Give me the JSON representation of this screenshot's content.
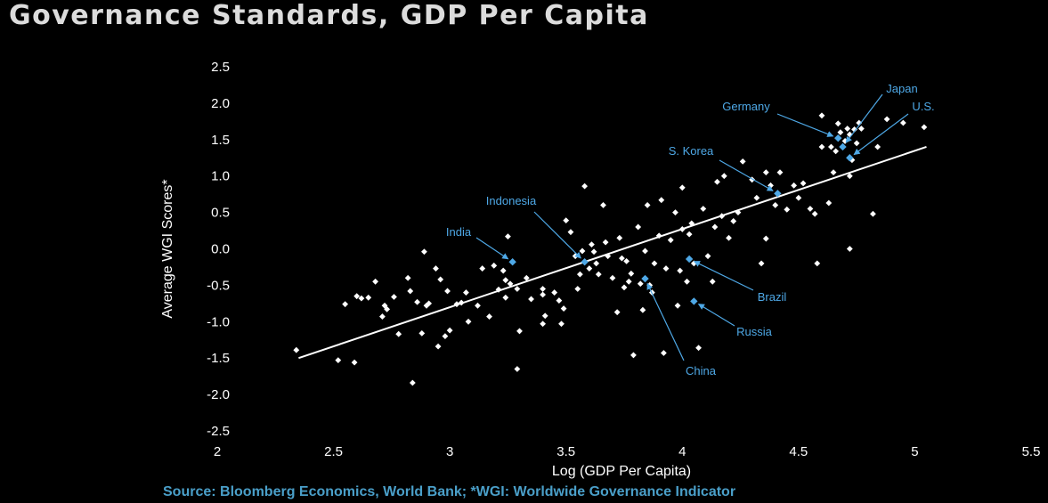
{
  "title": "Governance Standards, GDP Per Capita",
  "source": "Source: Bloomberg Economics, World Bank; *WGI: Worldwide Governance Indicator",
  "colors": {
    "background": "#000000",
    "points": "#ffffff",
    "highlight": "#4ea8e6",
    "title": "#dcdcdc",
    "source": "#4a9fc9"
  },
  "chart_data": {
    "type": "scatter",
    "xlabel": "Log (GDP Per Capita)",
    "ylabel": "Average WGI Scores*",
    "xlim": [
      2,
      5.5
    ],
    "ylim": [
      -2.5,
      2.5
    ],
    "xticks": [
      "2",
      "2.5",
      "3",
      "3.5",
      "4",
      "4.5",
      "5",
      "5.5"
    ],
    "yticks": [
      "2.5",
      "2.0",
      "1.5",
      "1.0",
      "0.5",
      "0.0",
      "-0.5",
      "-1.0",
      "-1.5",
      "-2.0",
      "-2.5"
    ],
    "grid": false,
    "trendline": {
      "x": [
        2.35,
        5.05
      ],
      "y": [
        -1.5,
        1.4
      ]
    },
    "highlighted": [
      {
        "label": "Japan",
        "x": 4.69,
        "y": 1.4
      },
      {
        "label": "U.S.",
        "x": 4.72,
        "y": 1.25
      },
      {
        "label": "Germany",
        "x": 4.67,
        "y": 1.52
      },
      {
        "label": "S. Korea",
        "x": 4.41,
        "y": 0.76
      },
      {
        "label": "Indonesia",
        "x": 3.58,
        "y": -0.18
      },
      {
        "label": "India",
        "x": 3.27,
        "y": -0.18
      },
      {
        "label": "Brazil",
        "x": 4.03,
        "y": -0.14
      },
      {
        "label": "Russia",
        "x": 4.05,
        "y": -0.72
      },
      {
        "label": "China",
        "x": 3.84,
        "y": -0.41
      }
    ],
    "points": [
      [
        2.34,
        -1.39
      ],
      [
        2.52,
        -1.53
      ],
      [
        2.55,
        -0.76
      ],
      [
        2.59,
        -1.56
      ],
      [
        2.6,
        -0.65
      ],
      [
        2.62,
        -0.68
      ],
      [
        2.65,
        -0.67
      ],
      [
        2.68,
        -0.45
      ],
      [
        2.71,
        -0.93
      ],
      [
        2.72,
        -0.78
      ],
      [
        2.73,
        -0.83
      ],
      [
        2.76,
        -0.66
      ],
      [
        2.78,
        -1.17
      ],
      [
        2.82,
        -0.4
      ],
      [
        2.83,
        -0.58
      ],
      [
        2.84,
        -1.84
      ],
      [
        2.86,
        -0.73
      ],
      [
        2.88,
        -1.16
      ],
      [
        2.9,
        -0.78
      ],
      [
        2.89,
        -0.04
      ],
      [
        2.91,
        -0.75
      ],
      [
        2.94,
        -0.27
      ],
      [
        2.95,
        -1.34
      ],
      [
        2.96,
        -0.42
      ],
      [
        2.98,
        -1.2
      ],
      [
        2.99,
        -0.58
      ],
      [
        3.0,
        -1.12
      ],
      [
        3.03,
        -0.76
      ],
      [
        3.05,
        -0.74
      ],
      [
        3.07,
        -0.6
      ],
      [
        3.08,
        -1.0
      ],
      [
        3.12,
        -0.78
      ],
      [
        3.14,
        -0.27
      ],
      [
        3.17,
        -0.93
      ],
      [
        3.19,
        -0.23
      ],
      [
        3.21,
        -0.56
      ],
      [
        3.23,
        -0.3
      ],
      [
        3.24,
        -0.43
      ],
      [
        3.26,
        -0.48
      ],
      [
        3.25,
        0.17
      ],
      [
        3.24,
        -0.67
      ],
      [
        3.29,
        -0.55
      ],
      [
        3.3,
        -1.13
      ],
      [
        3.29,
        -1.65
      ],
      [
        3.33,
        -0.4
      ],
      [
        3.35,
        -0.69
      ],
      [
        3.4,
        -0.55
      ],
      [
        3.4,
        -0.63
      ],
      [
        3.4,
        -1.03
      ],
      [
        3.41,
        -0.92
      ],
      [
        3.45,
        -0.6
      ],
      [
        3.47,
        -0.71
      ],
      [
        3.48,
        -1.03
      ],
      [
        3.49,
        -0.82
      ],
      [
        3.5,
        0.39
      ],
      [
        3.52,
        0.23
      ],
      [
        3.54,
        -0.1
      ],
      [
        3.55,
        -0.55
      ],
      [
        3.56,
        -0.35
      ],
      [
        3.57,
        -0.03
      ],
      [
        3.58,
        0.86
      ],
      [
        3.6,
        -0.27
      ],
      [
        3.61,
        0.06
      ],
      [
        3.62,
        -0.04
      ],
      [
        3.63,
        -0.2
      ],
      [
        3.64,
        -0.35
      ],
      [
        3.66,
        0.6
      ],
      [
        3.67,
        0.09
      ],
      [
        3.68,
        -0.1
      ],
      [
        3.7,
        -0.4
      ],
      [
        3.72,
        -0.87
      ],
      [
        3.73,
        0.15
      ],
      [
        3.74,
        -0.13
      ],
      [
        3.75,
        -0.53
      ],
      [
        3.76,
        -0.17
      ],
      [
        3.77,
        -0.45
      ],
      [
        3.78,
        -0.34
      ],
      [
        3.79,
        -1.46
      ],
      [
        3.81,
        0.3
      ],
      [
        3.82,
        -0.48
      ],
      [
        3.83,
        -0.84
      ],
      [
        3.84,
        -0.03
      ],
      [
        3.85,
        0.6
      ],
      [
        3.86,
        -0.5
      ],
      [
        3.87,
        -0.6
      ],
      [
        3.88,
        -0.2
      ],
      [
        3.9,
        0.18
      ],
      [
        3.91,
        0.67
      ],
      [
        3.92,
        -1.43
      ],
      [
        3.93,
        -0.27
      ],
      [
        3.95,
        0.12
      ],
      [
        3.97,
        0.5
      ],
      [
        3.98,
        -0.78
      ],
      [
        3.99,
        -0.3
      ],
      [
        4.0,
        0.27
      ],
      [
        4.0,
        0.84
      ],
      [
        4.02,
        -0.45
      ],
      [
        4.03,
        0.2
      ],
      [
        4.04,
        0.35
      ],
      [
        4.05,
        -0.2
      ],
      [
        4.07,
        -1.36
      ],
      [
        4.09,
        0.55
      ],
      [
        4.11,
        -0.1
      ],
      [
        4.13,
        -0.45
      ],
      [
        4.14,
        0.3
      ],
      [
        4.15,
        0.92
      ],
      [
        4.17,
        0.45
      ],
      [
        4.18,
        1.0
      ],
      [
        4.2,
        0.15
      ],
      [
        4.22,
        0.38
      ],
      [
        4.24,
        0.5
      ],
      [
        4.26,
        1.2
      ],
      [
        4.3,
        0.95
      ],
      [
        4.32,
        0.7
      ],
      [
        4.34,
        -0.2
      ],
      [
        4.36,
        0.14
      ],
      [
        4.36,
        1.05
      ],
      [
        4.38,
        0.87
      ],
      [
        4.4,
        0.6
      ],
      [
        4.42,
        1.05
      ],
      [
        4.45,
        0.54
      ],
      [
        4.48,
        0.87
      ],
      [
        4.5,
        0.7
      ],
      [
        4.52,
        0.9
      ],
      [
        4.55,
        0.55
      ],
      [
        4.57,
        0.48
      ],
      [
        4.58,
        -0.2
      ],
      [
        4.6,
        1.83
      ],
      [
        4.6,
        1.4
      ],
      [
        4.63,
        0.63
      ],
      [
        4.64,
        1.4
      ],
      [
        4.65,
        1.05
      ],
      [
        4.66,
        1.34
      ],
      [
        4.67,
        1.72
      ],
      [
        4.68,
        1.6
      ],
      [
        4.7,
        1.48
      ],
      [
        4.71,
        1.65
      ],
      [
        4.72,
        1.57
      ],
      [
        4.73,
        1.22
      ],
      [
        4.74,
        1.64
      ],
      [
        4.75,
        1.45
      ],
      [
        4.76,
        1.73
      ],
      [
        4.77,
        1.65
      ],
      [
        4.72,
        1.0
      ],
      [
        4.72,
        0.0
      ],
      [
        4.82,
        0.48
      ],
      [
        4.84,
        1.4
      ],
      [
        4.88,
        1.78
      ],
      [
        4.95,
        1.73
      ],
      [
        5.04,
        1.67
      ]
    ]
  }
}
